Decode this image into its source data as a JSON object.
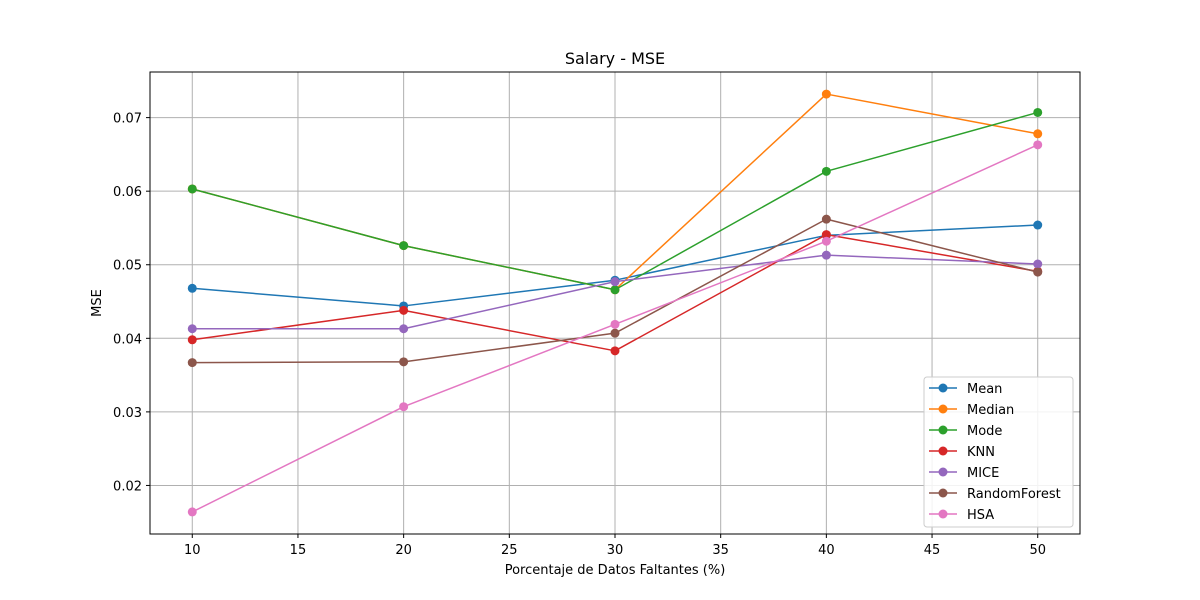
{
  "chart_data": {
    "type": "line",
    "title": "Salary - MSE",
    "xlabel": "Porcentaje de Datos Faltantes (%)",
    "ylabel": "MSE",
    "x": [
      10,
      20,
      30,
      40,
      50
    ],
    "xlim": [
      8,
      52
    ],
    "ylim": [
      0.0134,
      0.0762
    ],
    "xticks": [
      10,
      15,
      20,
      25,
      30,
      35,
      40,
      45,
      50
    ],
    "yticks": [
      0.02,
      0.03,
      0.04,
      0.05,
      0.06,
      0.07
    ],
    "ytick_labels": [
      "0.02",
      "0.03",
      "0.04",
      "0.05",
      "0.06",
      "0.07"
    ],
    "grid": true,
    "legend_position": "lower-right",
    "series": [
      {
        "name": "Mean",
        "color": "#1f77b4",
        "values": [
          0.0468,
          0.0444,
          0.0479,
          0.054,
          0.0554
        ]
      },
      {
        "name": "Median",
        "color": "#ff7f0e",
        "values": [
          0.0603,
          0.0526,
          0.0466,
          0.0732,
          0.0678
        ]
      },
      {
        "name": "Mode",
        "color": "#2ca02c",
        "values": [
          0.0603,
          0.0526,
          0.0466,
          0.0627,
          0.0707
        ]
      },
      {
        "name": "KNN",
        "color": "#d62728",
        "values": [
          0.0398,
          0.0438,
          0.0383,
          0.0541,
          0.0491
        ]
      },
      {
        "name": "MICE",
        "color": "#9467bd",
        "values": [
          0.0413,
          0.0413,
          0.0477,
          0.0513,
          0.0501
        ]
      },
      {
        "name": "RandomForest",
        "color": "#8c564b",
        "values": [
          0.0367,
          0.0368,
          0.0407,
          0.0562,
          0.049
        ]
      },
      {
        "name": "HSA",
        "color": "#e377c2",
        "values": [
          0.0164,
          0.0307,
          0.0419,
          0.0532,
          0.0663
        ]
      }
    ]
  }
}
